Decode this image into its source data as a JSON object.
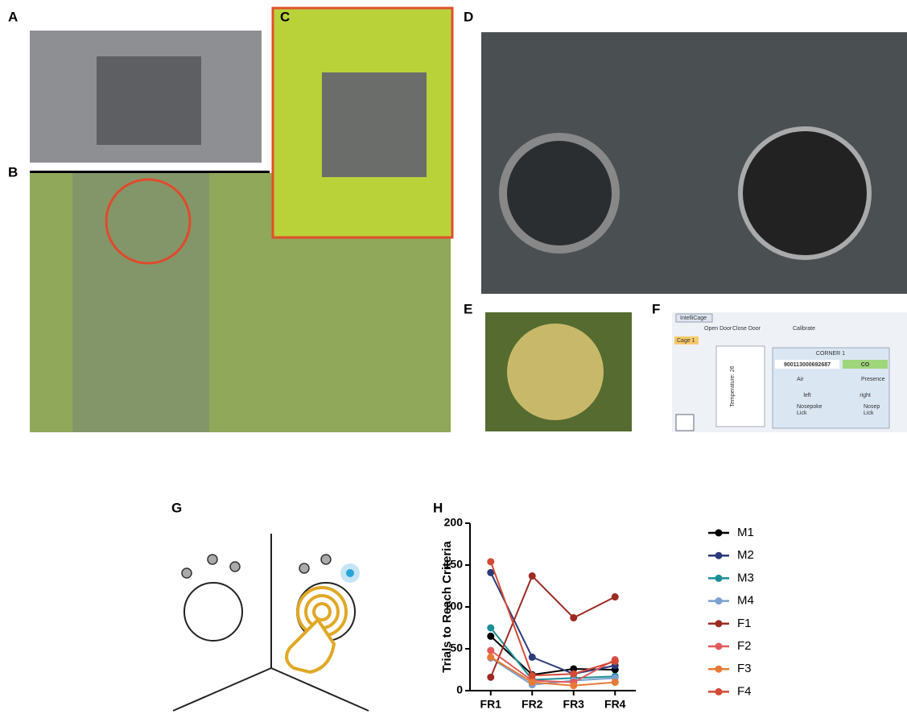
{
  "panels": {
    "a": "A",
    "b": "B",
    "c": "C",
    "d": "D",
    "e": "E",
    "f": "F",
    "g": "G",
    "h": "H"
  },
  "intellicage": {
    "tab": "IntelliCage",
    "open_door": "Open Door",
    "close_door": "Close Door",
    "calibrate": "Calibrate",
    "cage": "Cage 1",
    "corner": "CORNER 1",
    "tag": "900113000692687",
    "status": "CO",
    "air": "Air",
    "presence": "Presence",
    "left": "left",
    "right": "right",
    "left_nosepoke": "Nosepoke",
    "left_lick": "Lick",
    "right_nosepoke": "Nosep",
    "right_lick": "Lick",
    "temperature": "Temperature: 26"
  },
  "chart_data": {
    "type": "line",
    "y_label": "Trials to Reach Criteria",
    "categories": [
      "FR1",
      "FR2",
      "FR3",
      "FR4"
    ],
    "ylim": [
      0,
      200
    ],
    "yticks": [
      0,
      50,
      100,
      150,
      200
    ],
    "series": [
      {
        "name": "M1",
        "color": "#000000",
        "values": [
          65,
          19,
          26,
          25
        ]
      },
      {
        "name": "M2",
        "color": "#2b3a7a",
        "values": [
          141,
          40,
          20,
          30
        ]
      },
      {
        "name": "M3",
        "color": "#1a8f96",
        "values": [
          75,
          13,
          15,
          17
        ]
      },
      {
        "name": "M4",
        "color": "#7aa1cf",
        "values": [
          39,
          7,
          12,
          15
        ]
      },
      {
        "name": "F1",
        "color": "#9c2b23",
        "values": [
          16,
          137,
          87,
          112
        ]
      },
      {
        "name": "F2",
        "color": "#e2595a",
        "values": [
          48,
          12,
          10,
          37
        ]
      },
      {
        "name": "F3",
        "color": "#e77a35",
        "values": [
          40,
          10,
          6,
          10
        ]
      },
      {
        "name": "F4",
        "color": "#d44a34",
        "values": [
          154,
          18,
          20,
          35
        ]
      }
    ]
  }
}
